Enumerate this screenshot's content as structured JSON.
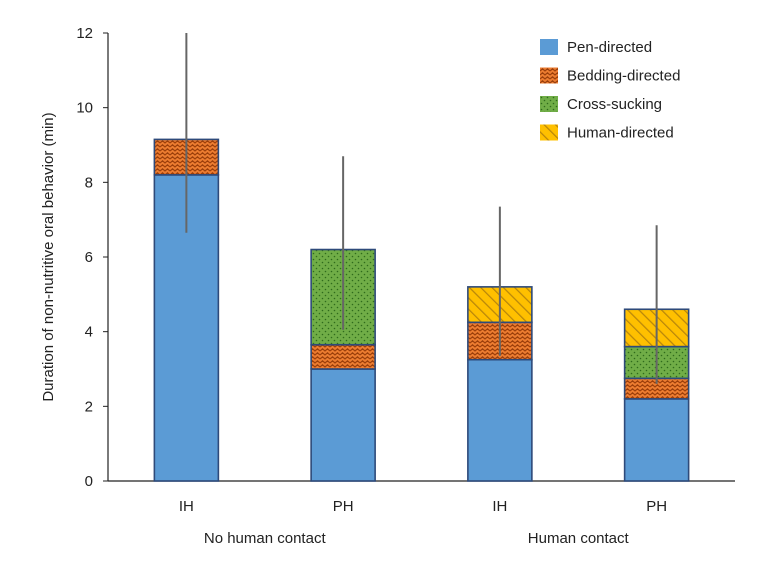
{
  "chart_data": {
    "type": "bar",
    "stacked": true,
    "ylabel": "Duration of non-nutritive oral behavior (min)",
    "ylim": [
      0,
      12
    ],
    "yticks": [
      0,
      2,
      4,
      6,
      8,
      10,
      12
    ],
    "categories": [
      "IH",
      "PH",
      "IH",
      "PH"
    ],
    "groups": [
      {
        "label": "No human contact",
        "categories": [
          0,
          1
        ]
      },
      {
        "label": "Human contact",
        "categories": [
          2,
          3
        ]
      }
    ],
    "series": [
      {
        "name": "Pen-directed",
        "values": [
          8.2,
          3.0,
          3.25,
          2.2
        ],
        "color": "#5b9bd5",
        "pattern": "solid"
      },
      {
        "name": "Bedding-directed",
        "values": [
          0.95,
          0.65,
          1.0,
          0.55
        ],
        "color": "#ed7d31",
        "pattern": "zigzag"
      },
      {
        "name": "Cross-sucking",
        "values": [
          0,
          2.55,
          0,
          0.85
        ],
        "color": "#70ad47",
        "pattern": "dots"
      },
      {
        "name": "Human-directed",
        "values": [
          0,
          0,
          0.95,
          1.0
        ],
        "color": "#ffc000",
        "pattern": "diagonal"
      }
    ],
    "error_bars": [
      {
        "low": 6.65,
        "high": 12.0
      },
      {
        "low": 4.05,
        "high": 8.7
      },
      {
        "low": 3.35,
        "high": 7.35
      },
      {
        "low": 2.6,
        "high": 6.85
      }
    ],
    "legend_position": "top-right",
    "grid": false
  }
}
